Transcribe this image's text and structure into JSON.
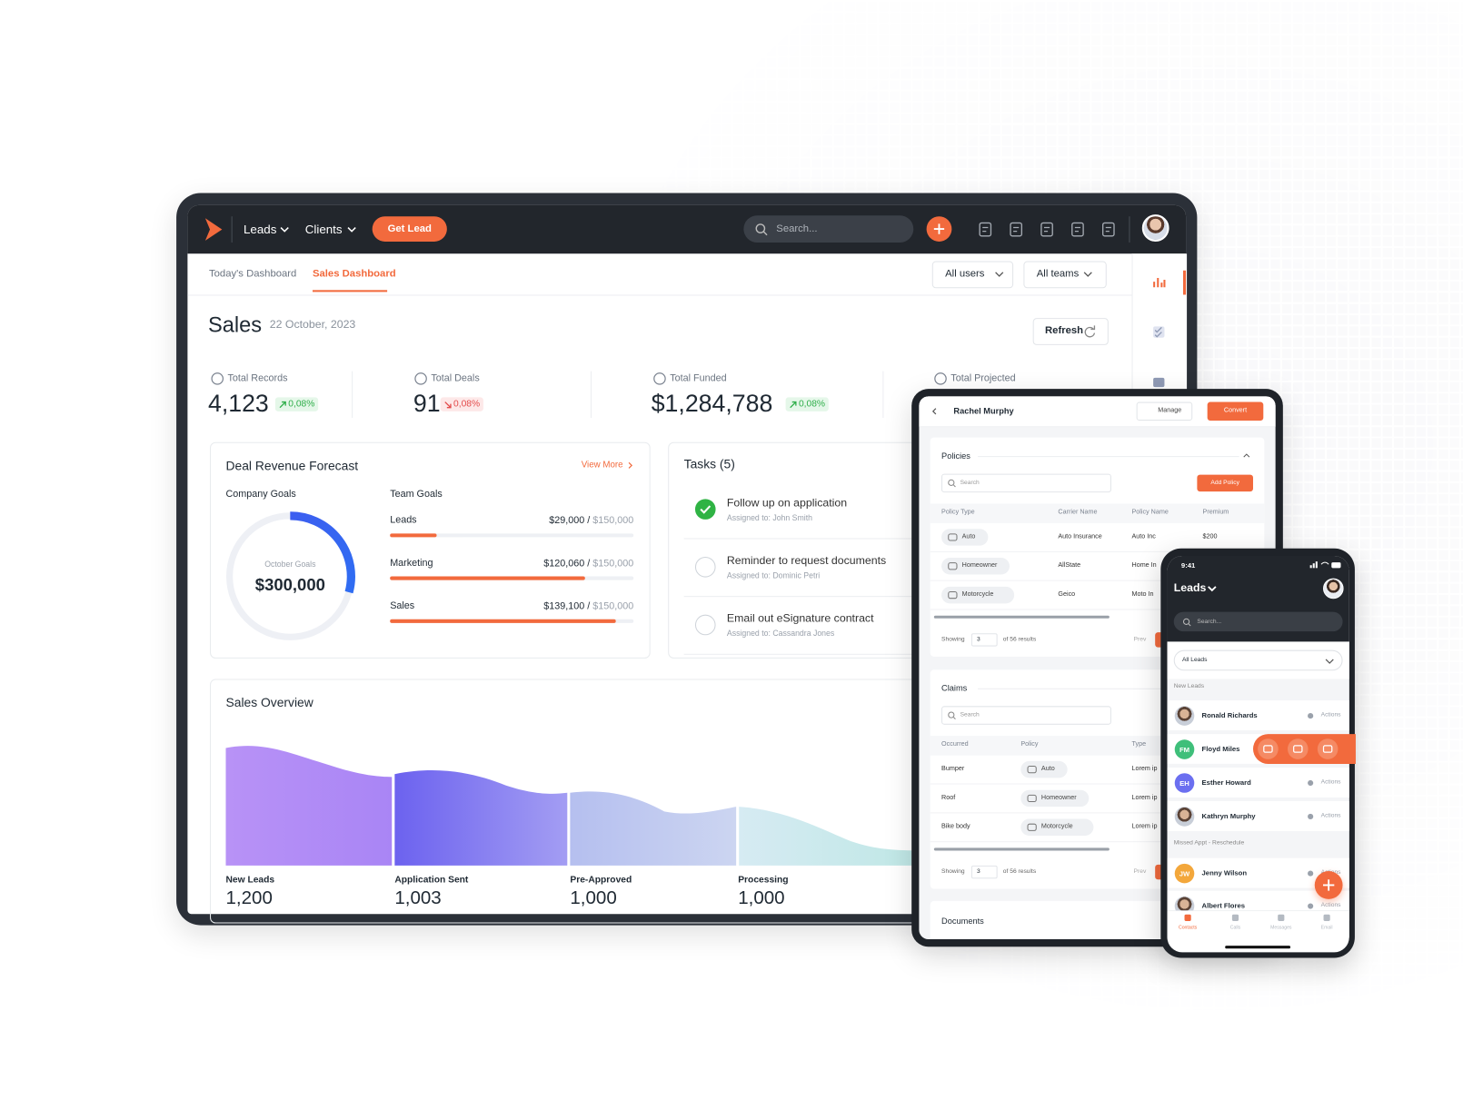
{
  "nav": {
    "menu": [
      "Leads",
      "Clients"
    ],
    "cta": "Get Lead",
    "search": "Search..."
  },
  "tabs": [
    "Today's Dashboard",
    "Sales Dashboard"
  ],
  "filters": [
    "All users",
    "All teams"
  ],
  "header": {
    "title": "Sales",
    "date": "22 October, 2023",
    "refresh": "Refresh"
  },
  "stats": [
    {
      "label": "Total Records",
      "value": "4,123",
      "change": "0,08%",
      "trend": "up"
    },
    {
      "label": "Total Deals",
      "value": "91",
      "change": "0,08%",
      "trend": "down"
    },
    {
      "label": "Total Funded",
      "value": "$1,284,788",
      "change": "0,08%",
      "trend": "up"
    },
    {
      "label": "Total Projected"
    }
  ],
  "forecast": {
    "title": "Deal Revenue Forecast",
    "link": "View More",
    "company_goals": "Company Goals",
    "donut_label": "October Goals",
    "donut_value": "$300,000",
    "team_goals": "Team Goals",
    "separator": "/",
    "goals": [
      {
        "name": "Leads",
        "value": 29000,
        "value_label": "$29,000",
        "target": 150000,
        "target_label": "$150,000"
      },
      {
        "name": "Marketing",
        "value": 120060,
        "value_label": "$120,060",
        "target": 150000,
        "target_label": "$150,000"
      },
      {
        "name": "Sales",
        "value": 139100,
        "value_label": "$139,100",
        "target": 150000,
        "target_label": "$150,000"
      }
    ]
  },
  "tasks": {
    "title": "Tasks (5)",
    "items": [
      {
        "title": "Follow up on application",
        "assignee": "Assigned to: John Smith",
        "done": true
      },
      {
        "title": "Reminder to request documents",
        "assignee": "Assigned to: Dominic Petri",
        "done": false
      },
      {
        "title": "Email out eSignature contract",
        "assignee": "Assigned to: Cassandra Jones",
        "done": false
      }
    ]
  },
  "sales_overview": {
    "title": "Sales Overview",
    "stages": [
      {
        "name": "New Leads",
        "value": "1,200"
      },
      {
        "name": "Application Sent",
        "value": "1,003"
      },
      {
        "name": "Pre-Approved",
        "value": "1,000"
      },
      {
        "name": "Processing",
        "value": "1,000"
      }
    ]
  },
  "tablet": {
    "name": "Rachel Murphy",
    "manage": "Manage",
    "convert": "Convert",
    "policies": {
      "title": "Policies",
      "search": "Search",
      "add": "Add Policy",
      "columns": [
        "Policy Type",
        "Carrier Name",
        "Policy Name",
        "Premium"
      ],
      "rows": [
        [
          "Auto",
          "Auto Insurance",
          "Auto Inc",
          "$200"
        ],
        [
          "Homeowner",
          "AllState",
          "Home In"
        ],
        [
          "Motorcycle",
          "Geico",
          "Moto In"
        ]
      ],
      "showing": "Showing",
      "per_page": "3",
      "results": "of 56 results",
      "prev": "Prev"
    },
    "claims": {
      "title": "Claims",
      "search": "Search",
      "columns": [
        "Occurred",
        "Policy",
        "Type"
      ],
      "rows": [
        [
          "Bumper",
          "Auto",
          "Lorem ip"
        ],
        [
          "Roof",
          "Homeowner",
          "Lorem ip"
        ],
        [
          "Bike body",
          "Motorcycle",
          "Lorem ip"
        ]
      ],
      "showing": "Showing",
      "per_page": "3",
      "results": "of 56 results",
      "prev": "Prev"
    },
    "documents": "Documents"
  },
  "phone": {
    "time": "9:41",
    "title": "Leads",
    "search": "Search...",
    "filter": "All Leads",
    "sections": [
      "New Leads",
      "Missed Appt - Reschedule"
    ],
    "actions": "Actions",
    "contacts": [
      {
        "name": "Ronald Richards"
      },
      {
        "name": "Floyd Miles",
        "initials": "FM"
      },
      {
        "name": "Esther Howard",
        "initials": "EH"
      },
      {
        "name": "Kathryn Murphy"
      },
      {
        "name": "Jenny Wilson",
        "initials": "JW"
      },
      {
        "name": "Albert Flores"
      }
    ],
    "tabs": [
      "Contacts",
      "Calls",
      "Messages",
      "Email"
    ]
  }
}
